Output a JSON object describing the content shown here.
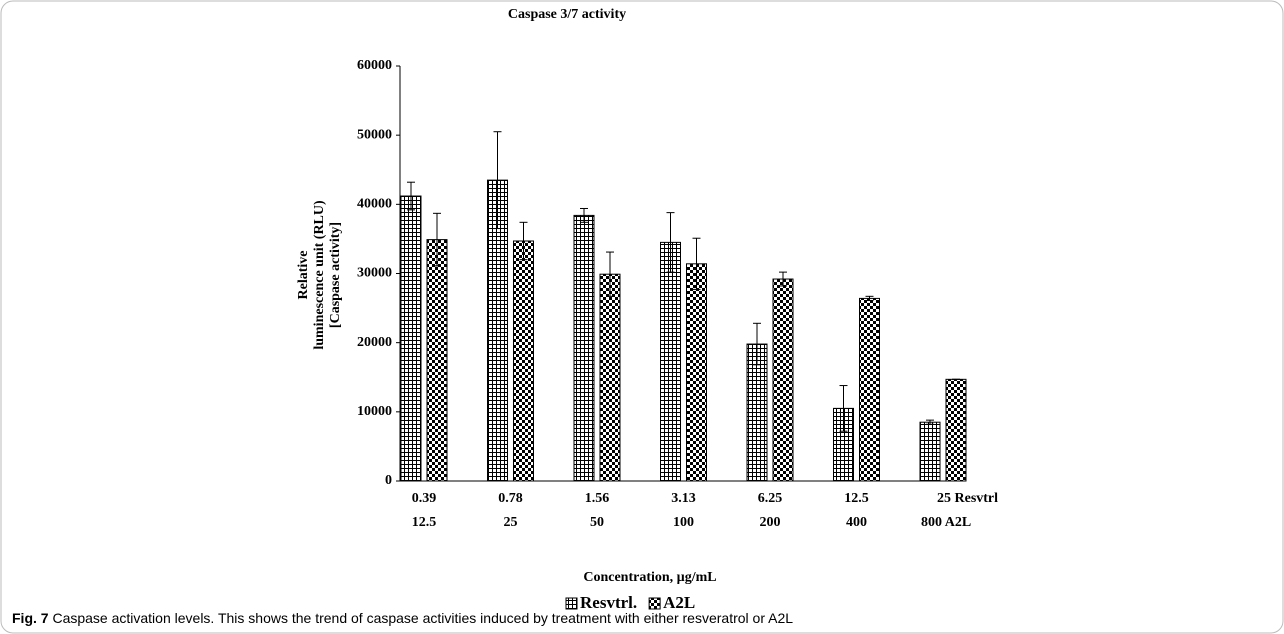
{
  "chart_data": {
    "type": "bar",
    "title": "Caspase 3/7 activity",
    "categories": [
      [
        "0.39",
        "12.5"
      ],
      [
        "0.78",
        "25"
      ],
      [
        "1.56",
        "50"
      ],
      [
        "3.13",
        "100"
      ],
      [
        "6.25",
        "200"
      ],
      [
        "12.5",
        "400"
      ],
      [
        "25 Resvtrl",
        "800 A2L"
      ]
    ],
    "series": [
      {
        "name": "Resvtrl.",
        "color": "#000000",
        "values": [
          41200,
          43500,
          38400,
          34500,
          19800,
          10500,
          8500
        ],
        "errors": [
          2000,
          7000,
          1000,
          4300,
          3000,
          3300,
          300
        ]
      },
      {
        "name": "A2L",
        "color": "#000000",
        "values": [
          34900,
          34700,
          29900,
          31400,
          29200,
          26400,
          14700
        ],
        "errors": [
          3800,
          2700,
          3200,
          3700,
          1000,
          300,
          0
        ]
      }
    ],
    "ylim": [
      0,
      60000
    ],
    "yticks": [
      0,
      10000,
      20000,
      30000,
      40000,
      50000,
      60000
    ],
    "ylabel": [
      "Relative",
      "luminescence unit (RLU)",
      "[Caspase activity]"
    ],
    "xlabel": "Concentration, µg/mL",
    "grid": false,
    "legend": "bottom"
  },
  "caption": {
    "label": "Fig. 7",
    "text": " Caspase activation levels. This shows the trend of caspase activities induced by treatment with either resveratrol or A2L"
  }
}
